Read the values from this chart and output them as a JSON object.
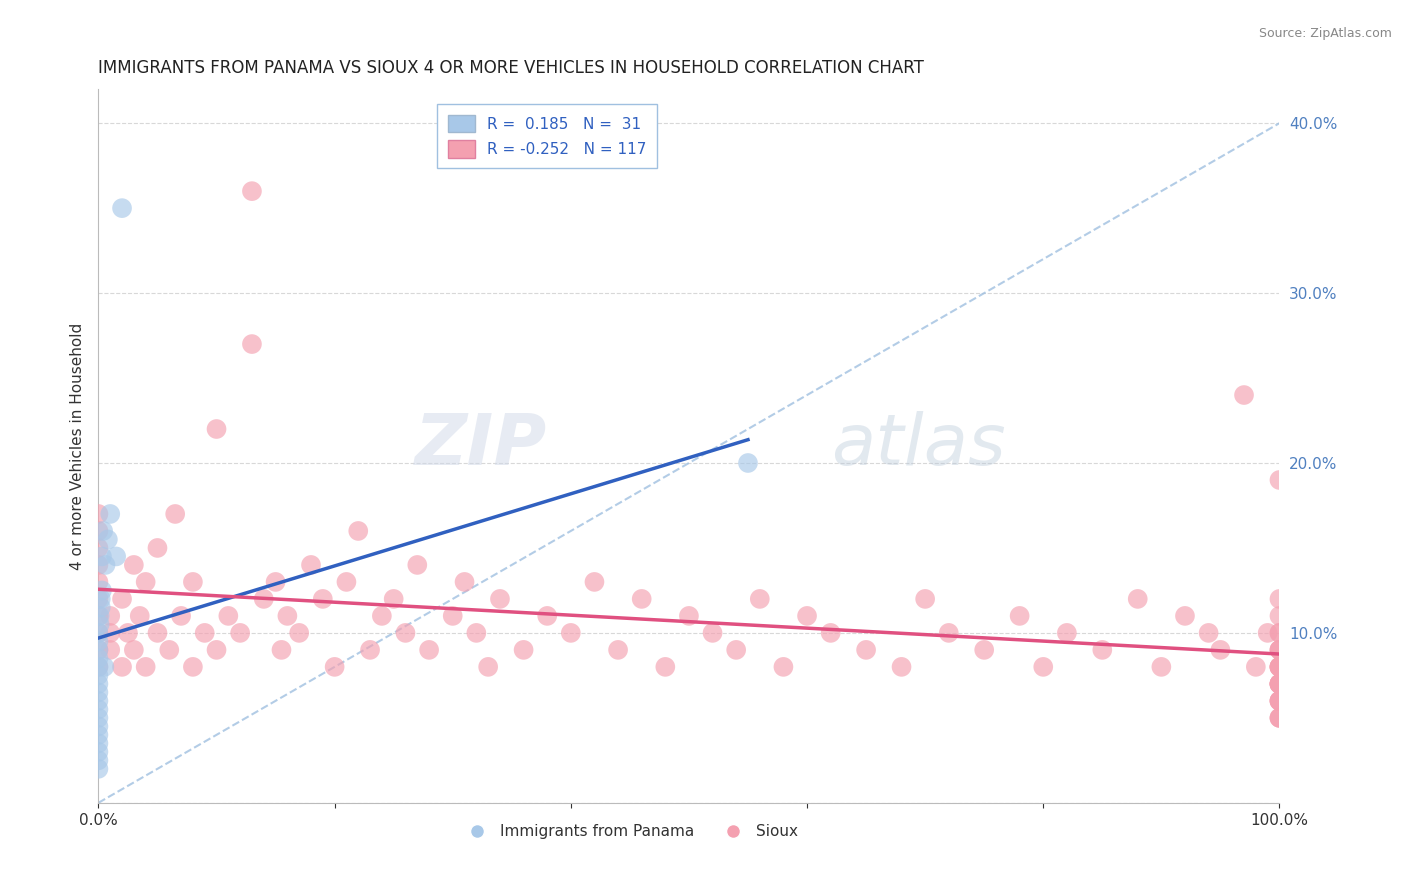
{
  "title": "IMMIGRANTS FROM PANAMA VS SIOUX 4 OR MORE VEHICLES IN HOUSEHOLD CORRELATION CHART",
  "source": "Source: ZipAtlas.com",
  "ylabel": "4 or more Vehicles in Household",
  "xlim": [
    0.0,
    1.0
  ],
  "ylim": [
    0.0,
    0.42
  ],
  "xticks": [
    0.0,
    0.2,
    0.4,
    0.6,
    0.8,
    1.0
  ],
  "xticklabels": [
    "0.0%",
    "",
    "",
    "",
    "",
    "100.0%"
  ],
  "yticks": [
    0.0,
    0.1,
    0.2,
    0.3,
    0.4
  ],
  "yticklabels": [
    "",
    "10.0%",
    "20.0%",
    "30.0%",
    "40.0%"
  ],
  "color_blue": "#A8C8E8",
  "color_pink": "#F4A0B0",
  "trendline_color_blue": "#3060C0",
  "trendline_color_pink": "#E05080",
  "diag_line_color": "#A0C0E0",
  "grid_color": "#D8D8D8",
  "background_color": "#FFFFFF",
  "tick_color": "#5080C0",
  "watermark_zip": "ZIP",
  "watermark_atlas": "atlas",
  "panama_x": [
    0.0,
    0.0,
    0.0,
    0.0,
    0.0,
    0.0,
    0.0,
    0.0,
    0.0,
    0.0,
    0.0,
    0.0,
    0.0,
    0.0,
    0.0,
    0.0,
    0.0,
    0.001,
    0.001,
    0.002,
    0.002,
    0.003,
    0.003,
    0.004,
    0.005,
    0.006,
    0.008,
    0.01,
    0.015,
    0.02,
    0.55
  ],
  "panama_y": [
    0.02,
    0.025,
    0.03,
    0.035,
    0.04,
    0.045,
    0.05,
    0.055,
    0.06,
    0.065,
    0.07,
    0.075,
    0.08,
    0.085,
    0.09,
    0.095,
    0.1,
    0.105,
    0.11,
    0.115,
    0.12,
    0.125,
    0.145,
    0.16,
    0.08,
    0.14,
    0.155,
    0.17,
    0.145,
    0.35,
    0.2
  ],
  "sioux_x": [
    0.0,
    0.0,
    0.0,
    0.0,
    0.0,
    0.0,
    0.0,
    0.0,
    0.0,
    0.0,
    0.01,
    0.01,
    0.01,
    0.02,
    0.02,
    0.025,
    0.03,
    0.03,
    0.035,
    0.04,
    0.04,
    0.05,
    0.05,
    0.06,
    0.065,
    0.07,
    0.08,
    0.08,
    0.09,
    0.1,
    0.1,
    0.11,
    0.12,
    0.13,
    0.13,
    0.14,
    0.15,
    0.155,
    0.16,
    0.17,
    0.18,
    0.19,
    0.2,
    0.21,
    0.22,
    0.23,
    0.24,
    0.25,
    0.26,
    0.27,
    0.28,
    0.3,
    0.31,
    0.32,
    0.33,
    0.34,
    0.36,
    0.38,
    0.4,
    0.42,
    0.44,
    0.46,
    0.48,
    0.5,
    0.52,
    0.54,
    0.56,
    0.58,
    0.6,
    0.62,
    0.65,
    0.68,
    0.7,
    0.72,
    0.75,
    0.78,
    0.8,
    0.82,
    0.85,
    0.88,
    0.9,
    0.92,
    0.94,
    0.95,
    0.97,
    0.98,
    0.99,
    1.0,
    1.0,
    1.0,
    1.0,
    1.0,
    1.0,
    1.0,
    1.0,
    1.0,
    1.0,
    1.0,
    1.0,
    1.0,
    1.0,
    1.0,
    1.0,
    1.0,
    1.0,
    1.0,
    1.0,
    1.0,
    1.0,
    1.0,
    1.0,
    1.0,
    1.0
  ],
  "sioux_y": [
    0.08,
    0.09,
    0.1,
    0.11,
    0.12,
    0.13,
    0.14,
    0.15,
    0.16,
    0.17,
    0.09,
    0.1,
    0.11,
    0.08,
    0.12,
    0.1,
    0.09,
    0.14,
    0.11,
    0.08,
    0.13,
    0.1,
    0.15,
    0.09,
    0.17,
    0.11,
    0.13,
    0.08,
    0.1,
    0.09,
    0.22,
    0.11,
    0.1,
    0.36,
    0.27,
    0.12,
    0.13,
    0.09,
    0.11,
    0.1,
    0.14,
    0.12,
    0.08,
    0.13,
    0.16,
    0.09,
    0.11,
    0.12,
    0.1,
    0.14,
    0.09,
    0.11,
    0.13,
    0.1,
    0.08,
    0.12,
    0.09,
    0.11,
    0.1,
    0.13,
    0.09,
    0.12,
    0.08,
    0.11,
    0.1,
    0.09,
    0.12,
    0.08,
    0.11,
    0.1,
    0.09,
    0.08,
    0.12,
    0.1,
    0.09,
    0.11,
    0.08,
    0.1,
    0.09,
    0.12,
    0.08,
    0.11,
    0.1,
    0.09,
    0.24,
    0.08,
    0.1,
    0.07,
    0.08,
    0.09,
    0.1,
    0.11,
    0.12,
    0.07,
    0.08,
    0.09,
    0.05,
    0.06,
    0.07,
    0.08,
    0.09,
    0.1,
    0.05,
    0.06,
    0.07,
    0.08,
    0.19,
    0.06,
    0.07,
    0.05,
    0.06,
    0.07,
    0.08
  ]
}
